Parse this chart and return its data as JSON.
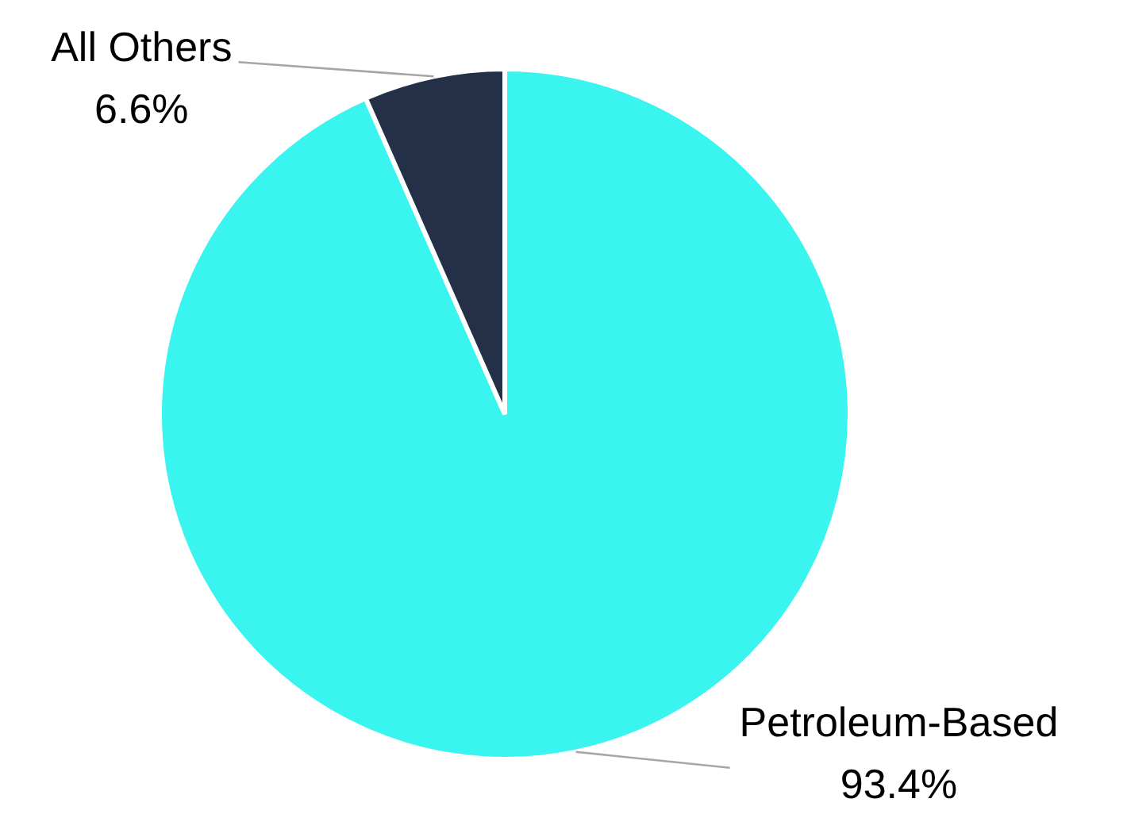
{
  "chart_data": {
    "type": "pie",
    "categories": [
      "Petroleum-Based",
      "All Others"
    ],
    "values": [
      93.4,
      6.6
    ],
    "colors": [
      "#3af5ef",
      "#233047"
    ],
    "value_labels": [
      "93.4%",
      "6.6%"
    ],
    "legend": false
  }
}
